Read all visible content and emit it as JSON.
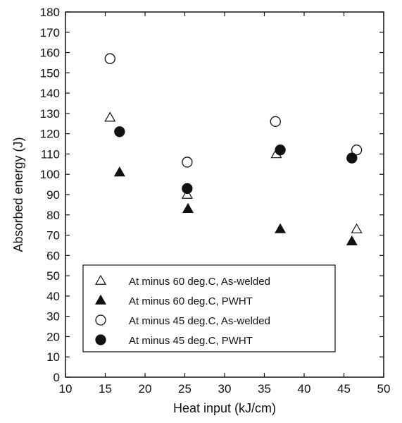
{
  "chart_data": {
    "type": "scatter",
    "title": "",
    "xlabel": "Heat input (kJ/cm)",
    "ylabel": "Absorbed energy (J)",
    "xlim": [
      10,
      50
    ],
    "ylim": [
      0,
      180
    ],
    "xticks": [
      10,
      15,
      20,
      25,
      30,
      35,
      40,
      45,
      50
    ],
    "yticks": [
      0,
      10,
      20,
      30,
      40,
      50,
      60,
      70,
      80,
      90,
      100,
      110,
      120,
      130,
      140,
      150,
      160,
      170,
      180
    ],
    "grid": false,
    "legend_position": "bottom-left",
    "series": [
      {
        "name": "At minus 60 deg.C, As-welded",
        "marker": "triangle-open",
        "points": [
          {
            "x": 15.6,
            "y": 128
          },
          {
            "x": 25.3,
            "y": 90
          },
          {
            "x": 36.5,
            "y": 110
          },
          {
            "x": 46.6,
            "y": 73
          }
        ]
      },
      {
        "name": "At minus 60 deg.C, PWHT",
        "marker": "triangle-filled",
        "points": [
          {
            "x": 16.8,
            "y": 101
          },
          {
            "x": 25.4,
            "y": 83
          },
          {
            "x": 37.0,
            "y": 73
          },
          {
            "x": 46.0,
            "y": 67
          }
        ]
      },
      {
        "name": "At minus 45 deg.C, As-welded",
        "marker": "circle-open",
        "points": [
          {
            "x": 15.6,
            "y": 157
          },
          {
            "x": 25.3,
            "y": 106
          },
          {
            "x": 36.4,
            "y": 126
          },
          {
            "x": 46.6,
            "y": 112
          }
        ]
      },
      {
        "name": "At minus 45 deg.C, PWHT",
        "marker": "circle-filled",
        "points": [
          {
            "x": 16.8,
            "y": 121
          },
          {
            "x": 25.3,
            "y": 93
          },
          {
            "x": 37.0,
            "y": 112
          },
          {
            "x": 46.0,
            "y": 108
          }
        ]
      }
    ],
    "colors": {
      "ink": "#111111",
      "background": "#ffffff"
    }
  }
}
